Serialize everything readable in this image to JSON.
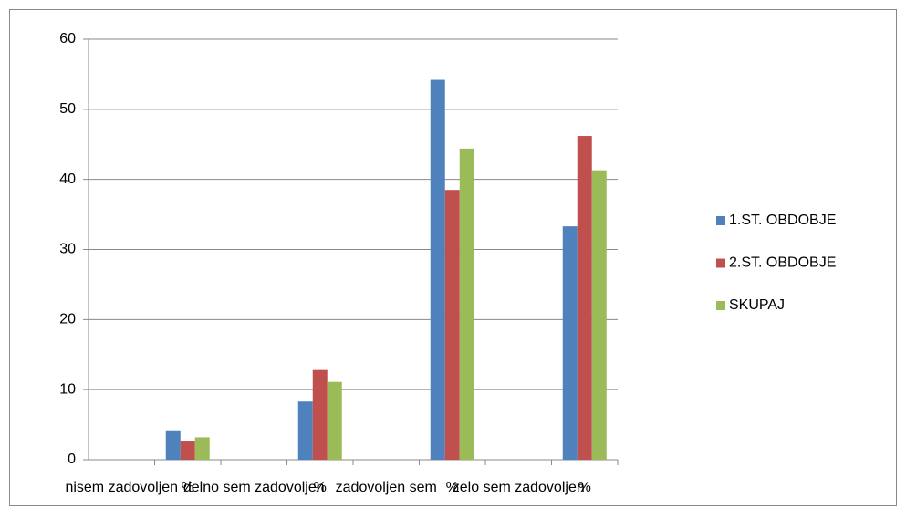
{
  "chart_data": {
    "type": "bar",
    "categories": [
      "nisem zadovoljen",
      "%",
      "delno sem zadovoljen",
      "%",
      "zadovoljen sem",
      "%",
      "zelo sem zadovoljen",
      "%"
    ],
    "series": [
      {
        "name": "1.ST. OBDOBJE",
        "color": "#4f81bd",
        "values": [
          null,
          4.2,
          null,
          8.3,
          null,
          54.2,
          null,
          33.3
        ]
      },
      {
        "name": "2.ST. OBDOBJE",
        "color": "#c0504d",
        "values": [
          null,
          2.6,
          null,
          12.8,
          null,
          38.5,
          null,
          46.2
        ]
      },
      {
        "name": "SKUPAJ",
        "color": "#9bbb59",
        "values": [
          null,
          3.2,
          null,
          11.1,
          null,
          44.4,
          null,
          41.3
        ]
      }
    ],
    "ylim": [
      0,
      60
    ],
    "yticks": [
      0,
      10,
      20,
      30,
      40,
      50,
      60
    ],
    "grid": true,
    "legend": "right"
  }
}
